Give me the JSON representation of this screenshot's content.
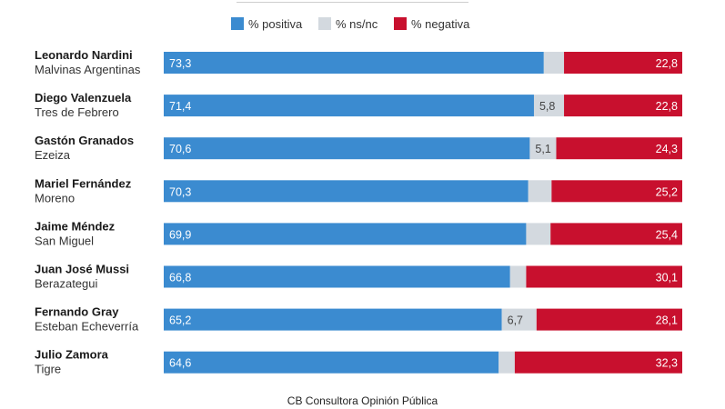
{
  "chart_data": {
    "type": "bar",
    "stacked": true,
    "orientation": "horizontal",
    "legend": [
      {
        "key": "positiva",
        "label": "% positiva",
        "color": "#3b8bd0"
      },
      {
        "key": "nsnc",
        "label": "% ns/nc",
        "color": "#d3d9df"
      },
      {
        "key": "negativa",
        "label": "% negativa",
        "color": "#c8102e"
      }
    ],
    "rows": [
      {
        "name": "Leonardo Nardini",
        "place": "Malvinas Argentinas",
        "positiva": 73.3,
        "positiva_label": "73,3",
        "nsnc": 3.9,
        "nsnc_label": "",
        "negativa": 22.8,
        "negativa_label": "22,8"
      },
      {
        "name": "Diego Valenzuela",
        "place": "Tres de Febrero",
        "positiva": 71.4,
        "positiva_label": "71,4",
        "nsnc": 5.8,
        "nsnc_label": "5,8",
        "negativa": 22.8,
        "negativa_label": "22,8"
      },
      {
        "name": "Gastón Granados",
        "place": "Ezeiza",
        "positiva": 70.6,
        "positiva_label": "70,6",
        "nsnc": 5.1,
        "nsnc_label": "5,1",
        "negativa": 24.3,
        "negativa_label": "24,3"
      },
      {
        "name": "Mariel Fernández",
        "place": "Moreno",
        "positiva": 70.3,
        "positiva_label": "70,3",
        "nsnc": 4.5,
        "nsnc_label": "",
        "negativa": 25.2,
        "negativa_label": "25,2"
      },
      {
        "name": "Jaime Méndez",
        "place": "San Miguel",
        "positiva": 69.9,
        "positiva_label": "69,9",
        "nsnc": 4.7,
        "nsnc_label": "",
        "negativa": 25.4,
        "negativa_label": "25,4"
      },
      {
        "name": "Juan José Mussi",
        "place": "Berazategui",
        "positiva": 66.8,
        "positiva_label": "66,8",
        "nsnc": 3.1,
        "nsnc_label": "",
        "negativa": 30.1,
        "negativa_label": "30,1"
      },
      {
        "name": "Fernando Gray",
        "place": "Esteban Echeverría",
        "positiva": 65.2,
        "positiva_label": "65,2",
        "nsnc": 6.7,
        "nsnc_label": "6,7",
        "negativa": 28.1,
        "negativa_label": "28,1"
      },
      {
        "name": "Julio Zamora",
        "place": "Tigre",
        "positiva": 64.6,
        "positiva_label": "64,6",
        "nsnc": 3.1,
        "nsnc_label": "",
        "negativa": 32.3,
        "negativa_label": "32,3"
      }
    ],
    "xlim": [
      0,
      100
    ],
    "source": "CB Consultora Opinión Pública"
  }
}
